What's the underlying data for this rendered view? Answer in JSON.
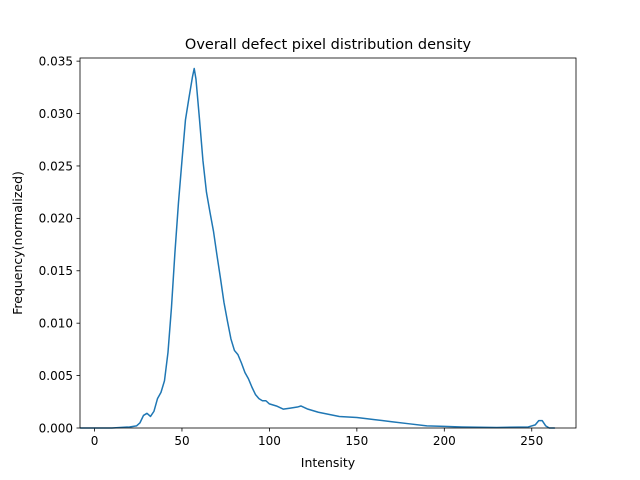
{
  "chart_data": {
    "type": "line",
    "title": "Overall defect pixel distribution density",
    "xlabel": "Intensity",
    "ylabel": "Frequency(normalized)",
    "xlim": [
      -8.3,
      275.3
    ],
    "ylim": [
      0.0,
      0.0353
    ],
    "xticks": [
      0,
      50,
      100,
      150,
      200,
      250
    ],
    "yticks": [
      0.0,
      0.005,
      0.01,
      0.015,
      0.02,
      0.025,
      0.03,
      0.035
    ],
    "ytick_labels": [
      "0.000",
      "0.005",
      "0.010",
      "0.015",
      "0.020",
      "0.025",
      "0.030",
      "0.035"
    ],
    "grid": false,
    "legend": "none",
    "series": [
      {
        "color": "#1f77b4",
        "points": [
          [
            -8,
            0.0
          ],
          [
            0,
            0.0
          ],
          [
            10,
            0.0
          ],
          [
            20,
            0.0001
          ],
          [
            24,
            0.0002
          ],
          [
            26,
            0.0005
          ],
          [
            28,
            0.0012
          ],
          [
            30,
            0.0014
          ],
          [
            32,
            0.0011
          ],
          [
            34,
            0.0016
          ],
          [
            36,
            0.0028
          ],
          [
            38,
            0.0034
          ],
          [
            40,
            0.0045
          ],
          [
            42,
            0.0072
          ],
          [
            44,
            0.0115
          ],
          [
            46,
            0.0168
          ],
          [
            48,
            0.0215
          ],
          [
            50,
            0.0255
          ],
          [
            52,
            0.0294
          ],
          [
            54,
            0.0315
          ],
          [
            56,
            0.0335
          ],
          [
            57,
            0.0343
          ],
          [
            58,
            0.0333
          ],
          [
            60,
            0.0295
          ],
          [
            62,
            0.0255
          ],
          [
            64,
            0.0225
          ],
          [
            66,
            0.0206
          ],
          [
            68,
            0.0188
          ],
          [
            70,
            0.0165
          ],
          [
            72,
            0.0143
          ],
          [
            74,
            0.012
          ],
          [
            76,
            0.0102
          ],
          [
            78,
            0.0085
          ],
          [
            80,
            0.0074
          ],
          [
            82,
            0.007
          ],
          [
            84,
            0.0062
          ],
          [
            86,
            0.0053
          ],
          [
            88,
            0.0047
          ],
          [
            90,
            0.0039
          ],
          [
            92,
            0.0032
          ],
          [
            94,
            0.0028
          ],
          [
            96,
            0.0026
          ],
          [
            98,
            0.0026
          ],
          [
            100,
            0.0023
          ],
          [
            104,
            0.0021
          ],
          [
            108,
            0.0018
          ],
          [
            112,
            0.0019
          ],
          [
            116,
            0.002
          ],
          [
            118,
            0.0021
          ],
          [
            122,
            0.0018
          ],
          [
            128,
            0.0015
          ],
          [
            134,
            0.0013
          ],
          [
            140,
            0.0011
          ],
          [
            150,
            0.001
          ],
          [
            160,
            0.0008
          ],
          [
            170,
            0.0006
          ],
          [
            180,
            0.0004
          ],
          [
            190,
            0.0002
          ],
          [
            200,
            0.00015
          ],
          [
            210,
            0.0001
          ],
          [
            230,
            5e-05
          ],
          [
            248,
            0.0001
          ],
          [
            252,
            0.0003
          ],
          [
            254,
            0.0007
          ],
          [
            256,
            0.0007
          ],
          [
            258,
            0.0002
          ],
          [
            260,
            0.0
          ],
          [
            263,
            0.0
          ]
        ]
      }
    ]
  }
}
